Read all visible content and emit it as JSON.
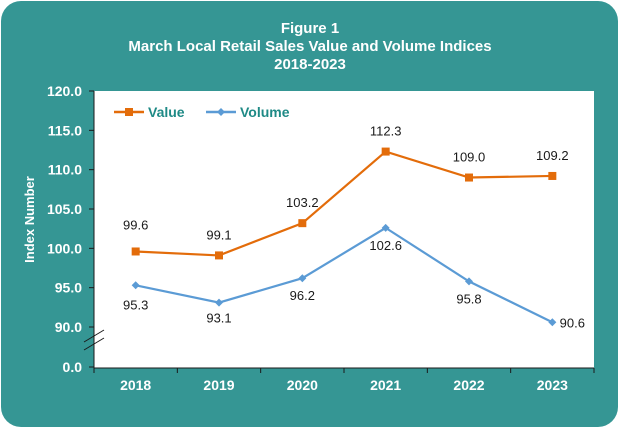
{
  "chart_data": {
    "type": "line",
    "title_lines": [
      "Figure 1",
      "March Local Retail Sales Value and Volume Indices",
      "2018-2023"
    ],
    "xlabel": "",
    "ylabel": "Index Number",
    "categories": [
      "2018",
      "2019",
      "2020",
      "2021",
      "2022",
      "2023"
    ],
    "yticks": [
      "0.0",
      "90.0",
      "95.0",
      "100.0",
      "105.0",
      "110.0",
      "115.0",
      "120.0"
    ],
    "ylim": [
      90,
      120
    ],
    "axis_break": true,
    "grid": false,
    "legend_position": "top-left",
    "series": [
      {
        "name": "Value",
        "color": "#E36C0A",
        "marker": "square",
        "values": [
          99.6,
          99.1,
          103.2,
          112.3,
          109.0,
          109.2
        ],
        "labels": [
          "99.6",
          "99.1",
          "103.2",
          "112.3",
          "109.0",
          "109.2"
        ]
      },
      {
        "name": "Volume",
        "color": "#5B9BD5",
        "marker": "diamond",
        "values": [
          95.3,
          93.1,
          96.2,
          102.6,
          95.8,
          90.6
        ],
        "labels": [
          "95.3",
          "93.1",
          "96.2",
          "102.6",
          "95.8",
          "90.6"
        ]
      }
    ],
    "colors": {
      "background": "#359694",
      "plot": "#ffffff",
      "axis_text": "#ffffff",
      "legend_text": "#1F8A86"
    }
  }
}
